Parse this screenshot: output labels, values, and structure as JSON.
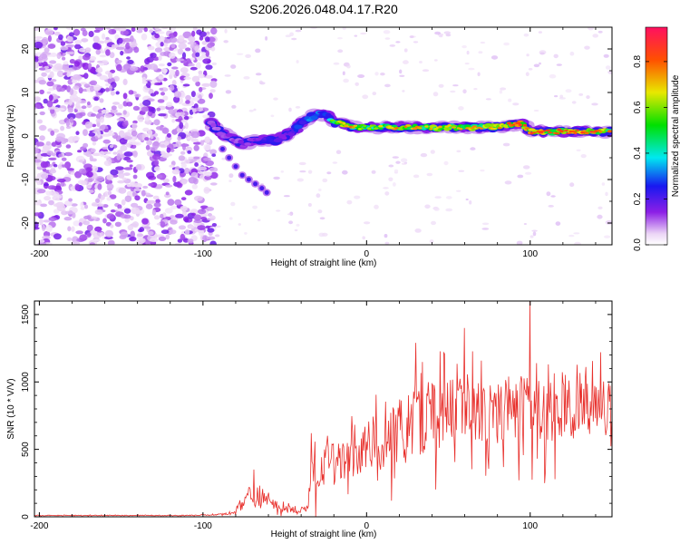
{
  "title": "S206.2026.048.04.17.R20",
  "chart_data": [
    {
      "type": "heatmap",
      "name": "spectrogram",
      "xlabel": "Height of straight line (km)",
      "ylabel": "Frequency (Hz)",
      "xlim": [
        -203,
        150
      ],
      "ylim": [
        -25,
        25
      ],
      "xticks": [
        -200,
        -100,
        0,
        100
      ],
      "xtick_labels": [
        "-200",
        "-100",
        "0",
        "100"
      ],
      "yticks": [
        -20,
        -10,
        0,
        10,
        20
      ],
      "ytick_labels": [
        "-20",
        "-10",
        "0",
        "10",
        "20"
      ],
      "colorbar": {
        "label": "Normalized spectral amplitude",
        "range": [
          0,
          0.95
        ],
        "ticks": [
          0.0,
          0.2,
          0.4,
          0.6,
          0.8
        ],
        "tick_labels": [
          "0.0",
          "0.2",
          "0.4",
          "0.6",
          "0.8"
        ]
      },
      "signal_track": {
        "x": [
          -95,
          -90,
          -85,
          -80,
          -75,
          -70,
          -65,
          -60,
          -55,
          -50,
          -45,
          -40,
          -35,
          -30,
          -25,
          -20,
          -15,
          -10,
          0,
          20,
          40,
          60,
          80,
          95,
          100,
          120,
          140,
          150
        ],
        "freq": [
          3,
          1,
          0,
          -1,
          -2,
          -1,
          -1,
          -1,
          -1,
          0,
          1,
          3,
          4,
          5,
          5,
          3,
          3,
          2,
          2,
          2,
          2,
          2,
          2,
          3,
          1,
          1,
          1,
          1
        ],
        "amplitude": [
          0.2,
          0.15,
          0.2,
          0.15,
          0.2,
          0.2,
          0.25,
          0.3,
          0.3,
          0.25,
          0.3,
          0.4,
          0.45,
          0.45,
          0.35,
          0.7,
          0.75,
          0.8,
          0.65,
          0.8,
          0.75,
          0.75,
          0.8,
          0.9,
          0.85,
          0.9,
          0.9,
          0.8
        ]
      },
      "noise_region_x": [
        -203,
        -93
      ]
    },
    {
      "type": "line",
      "name": "snr",
      "xlabel": "Height of straight line (km)",
      "ylabel": "SNR (10 * V/V)",
      "color": "#e8302c",
      "xlim": [
        -203,
        150
      ],
      "ylim": [
        0,
        1600
      ],
      "xticks": [
        -200,
        -100,
        0,
        100
      ],
      "xtick_labels": [
        "-200",
        "-100",
        "0",
        "100"
      ],
      "yticks": [
        0,
        500,
        1000,
        1500
      ],
      "ytick_labels": [
        "0",
        "500",
        "1000",
        "1500"
      ],
      "envelope": {
        "x": [
          -203,
          -110,
          -95,
          -85,
          -80,
          -75,
          -70,
          -65,
          -60,
          -50,
          -40,
          -36,
          -35,
          -30,
          -20,
          -10,
          0,
          10,
          20,
          30,
          40,
          50,
          60,
          70,
          80,
          90,
          100,
          110,
          120,
          130,
          140,
          150
        ],
        "baseline": [
          10,
          10,
          15,
          20,
          40,
          120,
          170,
          140,
          100,
          60,
          50,
          60,
          260,
          330,
          400,
          470,
          520,
          560,
          620,
          690,
          760,
          780,
          800,
          800,
          790,
          790,
          800,
          790,
          790,
          800,
          800,
          810
        ],
        "spread": [
          3,
          3,
          4,
          6,
          25,
          70,
          90,
          80,
          50,
          30,
          25,
          30,
          140,
          160,
          180,
          200,
          200,
          220,
          240,
          260,
          260,
          260,
          260,
          250,
          250,
          250,
          250,
          230,
          220,
          220,
          220,
          220
        ]
      },
      "spikes": [
        {
          "x": -69,
          "y": 350
        },
        {
          "x": -34,
          "y": 620
        },
        {
          "x": 20,
          "y": 870
        },
        {
          "x": 30,
          "y": 1290
        },
        {
          "x": 60,
          "y": 1400
        },
        {
          "x": 100,
          "y": 1600
        },
        {
          "x": 143,
          "y": 1220
        }
      ]
    }
  ]
}
